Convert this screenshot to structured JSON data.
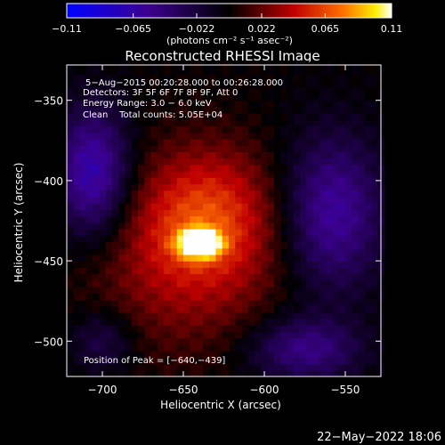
{
  "chart_data": {
    "type": "heatmap",
    "title": "Reconstructed RHESSI Image",
    "xlabel": "Heliocentric X (arcsec)",
    "ylabel": "Heliocentric Y (arcsec)",
    "xlim": [
      -722,
      -528
    ],
    "ylim": [
      -522,
      -328
    ],
    "x_ticks": [
      -700,
      -650,
      -600,
      -550
    ],
    "y_ticks": [
      -350,
      -400,
      -450,
      -500
    ],
    "x_tick_labels": [
      "−700",
      "−650",
      "−600",
      "−550"
    ],
    "y_tick_labels": [
      "−350",
      "−400",
      "−450",
      "−500"
    ],
    "colorbar": {
      "range": [
        -0.11,
        0.11
      ],
      "ticks": [
        -0.11,
        -0.065,
        -0.022,
        0.022,
        0.065,
        0.11
      ],
      "tick_labels": [
        "−0.11",
        "−0.065",
        "−0.022",
        "0.022",
        "0.065",
        "0.11"
      ],
      "units": "(photons cm⁻² s⁻¹ asec⁻²)"
    },
    "annotations": [
      "5−Aug−2015 00:20:28.000 to 00:26:28.000",
      "Detectors: 3F 5F 6F 7F 8F 9F, Att 0",
      "Energy Range: 3.0 − 6.0 keV",
      "Clean    Total counts: 5.05E+04"
    ],
    "peak_label": "Position of Peak = [−640,−439]",
    "peak": {
      "x": -640,
      "y": -439,
      "value": 0.11
    },
    "sources": [
      {
        "x": -640,
        "y": -439,
        "sx": 9,
        "sy": 6,
        "amp": 0.11
      },
      {
        "x": -635,
        "y": -420,
        "sx": 30,
        "sy": 30,
        "amp": 0.05
      },
      {
        "x": -650,
        "y": -455,
        "sx": 42,
        "sy": 38,
        "amp": 0.03
      },
      {
        "x": -706,
        "y": -395,
        "sx": 16,
        "sy": 28,
        "amp": -0.07
      },
      {
        "x": -558,
        "y": -420,
        "sx": 22,
        "sy": 34,
        "amp": -0.06
      },
      {
        "x": -575,
        "y": -505,
        "sx": 24,
        "sy": 14,
        "amp": -0.05
      },
      {
        "x": -700,
        "y": -500,
        "sx": 14,
        "sy": 14,
        "amp": -0.03
      }
    ]
  },
  "footer": {
    "timestamp": "22−May−2022 18:06"
  }
}
